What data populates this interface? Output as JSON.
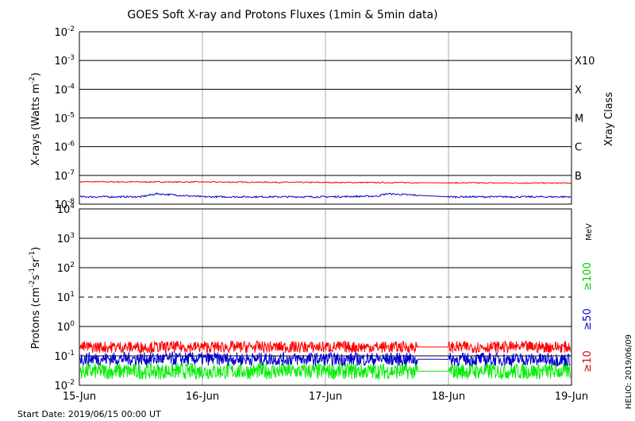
{
  "chart_data": [
    {
      "type": "line",
      "title": "GOES Soft X-ray and Protons Fluxes   (1min & 5min data)",
      "ylabel": {
        "base": "X-rays (Watts m",
        "exp": "-2",
        "close": ")"
      },
      "right_axis_label": "Xray Class",
      "yscale": "log",
      "ylim": [
        1e-08,
        0.01
      ],
      "xlim": [
        "2019-06-15",
        "2019-06-19"
      ],
      "grid": true,
      "ytick_exponents": [
        "-2",
        "-3",
        "-4",
        "-5",
        "-6",
        "-7",
        "-8"
      ],
      "ytick_base": "10",
      "class_labels": [
        {
          "label": "X10",
          "value": 0.001
        },
        {
          "label": "X",
          "value": 0.0001
        },
        {
          "label": "M",
          "value": 1e-05
        },
        {
          "label": "C",
          "value": 1e-06
        },
        {
          "label": "B",
          "value": 1e-07
        }
      ],
      "series": [
        {
          "color": "#ff0000",
          "x": [
            "2019-06-15",
            "2019-06-16",
            "2019-06-17",
            "2019-06-17 18:00",
            "2019-06-18",
            "2019-06-19"
          ],
          "values": [
            6e-08,
            5.9e-08,
            5.7e-08,
            5.6e-08,
            5.5e-08,
            5.4e-08
          ]
        },
        {
          "color": "#0000cc",
          "x": [
            "2019-06-15",
            "2019-06-15 12:00",
            "2019-06-15 15:00",
            "2019-06-16",
            "2019-06-17",
            "2019-06-17 10:00",
            "2019-06-17 12:00",
            "2019-06-18",
            "2019-06-19"
          ],
          "values": [
            1.8e-08,
            1.8e-08,
            2.3e-08,
            1.8e-08,
            1.8e-08,
            1.9e-08,
            2.3e-08,
            1.8e-08,
            1.8e-08
          ]
        }
      ]
    },
    {
      "type": "line",
      "ylabel": {
        "base": "Protons (cm",
        "e1": "-2",
        "mid": "s",
        "e2": "-1",
        "mid2": "sr",
        "e3": "-1",
        "close": ")"
      },
      "unit_label": "MeV",
      "yscale": "log",
      "ylim": [
        0.01,
        10000
      ],
      "xlim": [
        "2019-06-15",
        "2019-06-19"
      ],
      "grid": true,
      "ytick_exponents": [
        "4",
        "3",
        "2",
        "1",
        "0",
        "-1",
        "-2"
      ],
      "ytick_base": "10",
      "threshold": {
        "value": 10,
        "style": "dashed"
      },
      "legend": [
        "≥100",
        "≥50",
        "≥10"
      ],
      "series": [
        {
          "name": "≥10",
          "color": "#ff0000",
          "x": [
            "2019-06-15",
            "2019-06-19"
          ],
          "values": [
            0.2,
            0.2
          ]
        },
        {
          "name": "≥50",
          "color": "#0000cc",
          "x": [
            "2019-06-15",
            "2019-06-19"
          ],
          "values": [
            0.08,
            0.075
          ]
        },
        {
          "name": "≥100",
          "color": "#00ee00",
          "x": [
            "2019-06-15",
            "2019-06-19"
          ],
          "values": [
            0.03,
            0.03
          ]
        }
      ],
      "xticks": [
        "15-Jun",
        "16-Jun",
        "17-Jun",
        "18-Jun",
        "19-Jun"
      ]
    }
  ],
  "footer": {
    "start_date": "Start Date: 2019/06/15 00:00 UT",
    "credit": "HELIO: 2019/06/09"
  }
}
